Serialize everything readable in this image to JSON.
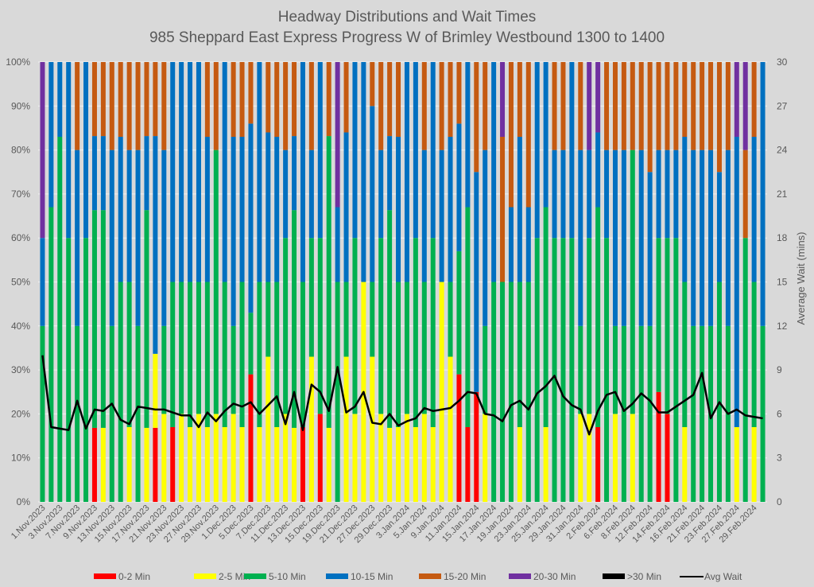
{
  "chart_data": {
    "type": "bar",
    "stacked": true,
    "percent_stacked": true,
    "title": "Headway Distributions and Wait Times",
    "subtitle": "985 Sheppard East Express  Progress W of Brimley Westbound 1300 to 1400",
    "xlabel": "",
    "ylabel_left": "",
    "ylabel_right": "Average Wait (mins)",
    "ylim_left": [
      0,
      100
    ],
    "ylim_right": [
      0,
      30
    ],
    "yticks_left": [
      "0%",
      "10%",
      "20%",
      "30%",
      "40%",
      "50%",
      "60%",
      "70%",
      "80%",
      "90%",
      "100%"
    ],
    "yticks_right": [
      "0",
      "3",
      "6",
      "9",
      "12",
      "15",
      "18",
      "21",
      "24",
      "27",
      "30"
    ],
    "grid": true,
    "legend_position": "bottom",
    "legend": [
      "0-2 Min",
      "2-5 Min",
      "5-10 Min",
      "10-15 Min",
      "15-20 Min",
      "20-30 Min",
      ">30 Min",
      "Avg Wait"
    ],
    "colors": {
      "0-2 Min": "#ff0000",
      "2-5 Min": "#ffff00",
      "5-10 Min": "#00b050",
      "10-15 Min": "#0070c0",
      "15-20 Min": "#c55a11",
      "20-30 Min": "#7030a0",
      ">30 Min": "#000000",
      "Avg Wait": "#000000"
    },
    "x_tick_labels": [
      "1.Nov.2023",
      "3.Nov.2023",
      "7.Nov.2023",
      "9.Nov.2023",
      "13.Nov.2023",
      "15.Nov.2023",
      "17.Nov.2023",
      "21.Nov.2023",
      "23.Nov.2023",
      "27.Nov.2023",
      "29.Nov.2023",
      "1.Dec.2023",
      "5.Dec.2023",
      "7.Dec.2023",
      "11.Dec.2023",
      "13.Dec.2023",
      "15.Dec.2023",
      "19.Dec.2023",
      "21.Dec.2023",
      "27.Dec.2023",
      "29.Dec.2023",
      "3.Jan.2024",
      "5.Jan.2024",
      "9.Jan.2024",
      "11.Jan.2024",
      "15.Jan.2024",
      "17.Jan.2024",
      "19.Jan.2024",
      "23.Jan.2024",
      "25.Jan.2024",
      "29.Jan.2024",
      "31.Jan.2024",
      "2.Feb.2024",
      "6.Feb.2024",
      "8.Feb.2024",
      "12.Feb.2024",
      "14.Feb.2024",
      "16.Feb.2024",
      "21.Feb.2024",
      "23.Feb.2024",
      "27.Feb.2024",
      "29.Feb.2024"
    ],
    "bars": [
      [
        0,
        0,
        40,
        20,
        0,
        40,
        0
      ],
      [
        0,
        0,
        67,
        33,
        0,
        0,
        0
      ],
      [
        0,
        0,
        83,
        17,
        0,
        0,
        0
      ],
      [
        0,
        0,
        60,
        40,
        0,
        0,
        0
      ],
      [
        0,
        0,
        40,
        40,
        20,
        0,
        0
      ],
      [
        0,
        0,
        60,
        40,
        0,
        0,
        0
      ],
      [
        17,
        0,
        50,
        17,
        17,
        0,
        0
      ],
      [
        0,
        17,
        50,
        17,
        17,
        0,
        0
      ],
      [
        0,
        0,
        40,
        40,
        20,
        0,
        0
      ],
      [
        0,
        0,
        50,
        33,
        17,
        0,
        0
      ],
      [
        0,
        17,
        33,
        30,
        20,
        0,
        0
      ],
      [
        0,
        0,
        40,
        40,
        20,
        0,
        0
      ],
      [
        0,
        17,
        50,
        17,
        17,
        0,
        0
      ],
      [
        17,
        17,
        0,
        50,
        17,
        0,
        0
      ],
      [
        0,
        20,
        20,
        40,
        20,
        0,
        0
      ],
      [
        17,
        0,
        33,
        50,
        0,
        0,
        0
      ],
      [
        0,
        20,
        30,
        50,
        0,
        0,
        0
      ],
      [
        0,
        17,
        33,
        50,
        0,
        0,
        0
      ],
      [
        0,
        20,
        30,
        50,
        0,
        0,
        0
      ],
      [
        0,
        17,
        33,
        33,
        17,
        0,
        0
      ],
      [
        0,
        20,
        60,
        0,
        20,
        0,
        0
      ],
      [
        0,
        17,
        33,
        50,
        0,
        0,
        0
      ],
      [
        0,
        20,
        20,
        43,
        17,
        0,
        0
      ],
      [
        0,
        17,
        33,
        33,
        17,
        0,
        0
      ],
      [
        29,
        0,
        14,
        43,
        14,
        0,
        0
      ],
      [
        0,
        17,
        33,
        50,
        0,
        0,
        0
      ],
      [
        0,
        33,
        17,
        34,
        16,
        0,
        0
      ],
      [
        0,
        17,
        33,
        33,
        17,
        0,
        0
      ],
      [
        0,
        20,
        40,
        20,
        20,
        0,
        0
      ],
      [
        0,
        17,
        50,
        17,
        17,
        0,
        0
      ],
      [
        17,
        0,
        33,
        50,
        0,
        0,
        0
      ],
      [
        0,
        33,
        27,
        20,
        20,
        0,
        0
      ],
      [
        20,
        0,
        40,
        40,
        0,
        0,
        0
      ],
      [
        0,
        17,
        67,
        0,
        17,
        0,
        0
      ],
      [
        0,
        0,
        50,
        17,
        0,
        33,
        0
      ],
      [
        0,
        33,
        17,
        34,
        16,
        0,
        0
      ],
      [
        0,
        20,
        40,
        40,
        0,
        0,
        0
      ],
      [
        0,
        50,
        0,
        50,
        0,
        0,
        0
      ],
      [
        0,
        33,
        17,
        40,
        10,
        0,
        0
      ],
      [
        0,
        20,
        40,
        20,
        20,
        0,
        0
      ],
      [
        0,
        17,
        50,
        17,
        17,
        0,
        0
      ],
      [
        0,
        17,
        33,
        33,
        17,
        0,
        0
      ],
      [
        0,
        20,
        30,
        50,
        0,
        0,
        0
      ],
      [
        0,
        17,
        43,
        40,
        0,
        0,
        0
      ],
      [
        0,
        20,
        30,
        30,
        20,
        0,
        0
      ],
      [
        0,
        17,
        43,
        40,
        0,
        0,
        0
      ],
      [
        0,
        50,
        0,
        30,
        20,
        0,
        0
      ],
      [
        0,
        33,
        17,
        33,
        17,
        0,
        0
      ],
      [
        29,
        0,
        28,
        29,
        14,
        0,
        0
      ],
      [
        17,
        0,
        50,
        33,
        0,
        0,
        0
      ],
      [
        25,
        0,
        0,
        50,
        25,
        0,
        0
      ],
      [
        0,
        20,
        20,
        40,
        20,
        0,
        0
      ],
      [
        0,
        0,
        50,
        50,
        0,
        0,
        0
      ],
      [
        0,
        0,
        50,
        0,
        33,
        17,
        0
      ],
      [
        0,
        0,
        50,
        17,
        33,
        0,
        0
      ],
      [
        0,
        17,
        33,
        33,
        17,
        0,
        0
      ],
      [
        0,
        0,
        50,
        17,
        33,
        0,
        0
      ],
      [
        0,
        0,
        60,
        40,
        0,
        0,
        0
      ],
      [
        0,
        17,
        50,
        33,
        0,
        0,
        0
      ],
      [
        0,
        0,
        60,
        20,
        20,
        0,
        0
      ],
      [
        0,
        0,
        60,
        20,
        20,
        0,
        0
      ],
      [
        0,
        0,
        60,
        40,
        0,
        0,
        0
      ],
      [
        0,
        20,
        20,
        40,
        20,
        0,
        0
      ],
      [
        0,
        20,
        40,
        20,
        0,
        20,
        0
      ],
      [
        17,
        0,
        50,
        17,
        0,
        16,
        0
      ],
      [
        0,
        0,
        60,
        20,
        20,
        0,
        0
      ],
      [
        0,
        20,
        20,
        40,
        20,
        0,
        0
      ],
      [
        0,
        0,
        40,
        40,
        20,
        0,
        0
      ],
      [
        0,
        20,
        60,
        0,
        20,
        0,
        0
      ],
      [
        0,
        0,
        40,
        40,
        20,
        0,
        0
      ],
      [
        0,
        0,
        40,
        35,
        25,
        0,
        0
      ],
      [
        25,
        0,
        35,
        20,
        20,
        0,
        0
      ],
      [
        20,
        0,
        40,
        20,
        20,
        0,
        0
      ],
      [
        0,
        0,
        60,
        20,
        20,
        0,
        0
      ],
      [
        0,
        17,
        33,
        33,
        17,
        0,
        0
      ],
      [
        0,
        0,
        40,
        40,
        20,
        0,
        0
      ],
      [
        0,
        0,
        40,
        40,
        20,
        0,
        0
      ],
      [
        0,
        0,
        40,
        40,
        20,
        0,
        0
      ],
      [
        0,
        0,
        50,
        25,
        25,
        0,
        0
      ],
      [
        0,
        0,
        40,
        40,
        20,
        0,
        0
      ],
      [
        0,
        17,
        0,
        66,
        0,
        17,
        0
      ],
      [
        0,
        0,
        60,
        0,
        20,
        20,
        0
      ],
      [
        0,
        17,
        33,
        33,
        17,
        0,
        0
      ],
      [
        0,
        0,
        40,
        60,
        0,
        0,
        0
      ]
    ],
    "avg_wait": [
      10.0,
      5.1,
      5.0,
      4.9,
      6.9,
      5.0,
      6.3,
      6.2,
      6.7,
      5.6,
      5.3,
      6.5,
      6.4,
      6.3,
      6.3,
      6.1,
      5.9,
      5.9,
      5.1,
      6.1,
      5.5,
      6.2,
      6.7,
      6.5,
      6.8,
      6.0,
      6.6,
      7.2,
      5.3,
      7.5,
      4.9,
      8.0,
      7.5,
      6.2,
      9.2,
      6.1,
      6.5,
      7.5,
      5.4,
      5.3,
      6.0,
      5.2,
      5.5,
      5.7,
      6.4,
      6.2,
      6.3,
      6.4,
      6.9,
      7.5,
      7.4,
      6.0,
      5.9,
      5.5,
      6.6,
      6.9,
      6.3,
      7.4,
      7.9,
      8.6,
      7.2,
      6.6,
      6.3,
      4.6,
      6.2,
      7.3,
      7.5,
      6.2,
      6.7,
      7.4,
      6.9,
      6.1,
      6.1,
      6.5,
      6.9,
      7.3,
      8.8,
      5.7,
      6.8,
      6.0,
      6.3,
      5.9,
      5.8,
      5.7
    ]
  },
  "legend_labels": [
    "0-2 Min",
    "2-5 Min",
    "5-10 Min",
    "10-15 Min",
    "15-20 Min",
    "20-30 Min",
    ">30 Min",
    "Avg Wait"
  ]
}
